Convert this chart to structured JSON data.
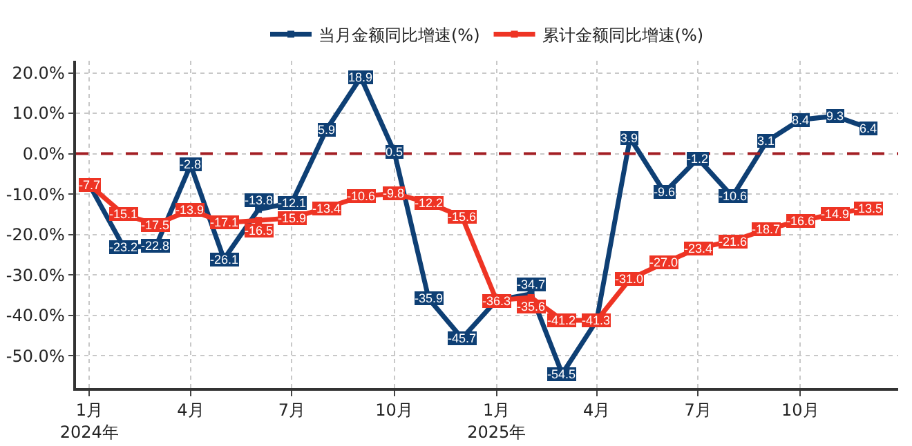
{
  "chart_data": {
    "type": "line",
    "x": [
      "2024-01",
      "2024-02",
      "2024-03",
      "2024-04",
      "2024-05",
      "2024-06",
      "2024-07",
      "2024-08",
      "2024-09",
      "2024-10",
      "2024-11",
      "2024-12",
      "2025-01",
      "2025-02",
      "2025-03",
      "2025-04",
      "2025-05",
      "2025-06",
      "2025-07",
      "2025-08",
      "2025-09",
      "2025-10",
      "2025-11",
      "2025-12"
    ],
    "series": [
      {
        "name": "当月金额同比增速(%)",
        "color": "#0e3f74",
        "values": [
          -7.7,
          -23.2,
          -22.8,
          -2.8,
          -26.1,
          -13.8,
          -12.1,
          5.9,
          18.9,
          0.5,
          -35.9,
          -45.7,
          -36.3,
          -34.7,
          -54.5,
          -41.3,
          3.9,
          -9.6,
          -1.2,
          -10.6,
          3.1,
          8.4,
          9.3,
          6.4
        ],
        "value_labels": [
          null,
          "-23.2",
          "-22.8",
          "-2.8",
          "-26.1",
          "-13.8",
          "-12.1",
          "5.9",
          "18.9",
          "0.5",
          "-35.9",
          "-45.7",
          null,
          "-34.7",
          "-54.5",
          null,
          "3.9",
          "-9.6",
          "-1.2",
          "-10.6",
          "3.1",
          "8.4",
          "9.3",
          "6.4"
        ]
      },
      {
        "name": "累计金额同比增速(%)",
        "color": "#ee3424",
        "values": [
          -7.7,
          -15.1,
          -17.5,
          -13.9,
          -17.1,
          -16.5,
          -15.9,
          -13.4,
          -10.6,
          -9.8,
          -12.2,
          -15.6,
          -36.3,
          -35.6,
          -41.2,
          -41.3,
          -31.0,
          -27.0,
          -23.4,
          -21.6,
          -18.7,
          -16.6,
          -14.9,
          -13.5
        ],
        "value_labels": [
          "-7.7",
          "-15.1",
          "-17.5",
          "-13.9",
          "-17.1",
          "-16.5",
          "-15.9",
          "-13.4",
          "-10.6",
          "-9.8",
          "-12.2",
          "-15.6",
          "-36.3",
          "-35.6",
          "-41.2",
          "-41.3",
          "-31.0",
          "-27.0",
          "-23.4",
          "-21.6",
          "-18.7",
          "-16.6",
          "-14.9",
          "-13.5"
        ]
      }
    ],
    "xlim": [
      "2023-12-20",
      "2025-12-28"
    ],
    "xticks": [
      {
        "value": "2024-01",
        "label": "1月\n2024年"
      },
      {
        "value": "2024-04",
        "label": "4月"
      },
      {
        "value": "2024-07",
        "label": "7月"
      },
      {
        "value": "2024-10",
        "label": "10月"
      },
      {
        "value": "2025-01",
        "label": "1月\n2025年"
      },
      {
        "value": "2025-04",
        "label": "4月"
      },
      {
        "value": "2025-07",
        "label": "7月"
      },
      {
        "value": "2025-10",
        "label": "10月"
      }
    ],
    "ylim": [
      -58,
      23
    ],
    "yticks": [
      {
        "value": -50,
        "label": "-50.0%"
      },
      {
        "value": -40,
        "label": "-40.0%"
      },
      {
        "value": -30,
        "label": "-30.0%"
      },
      {
        "value": -20,
        "label": "-20.0%"
      },
      {
        "value": -10,
        "label": "-10.0%"
      },
      {
        "value": 0,
        "label": "0.0%"
      },
      {
        "value": 10,
        "label": "10.0%"
      },
      {
        "value": 20,
        "label": "20.0%"
      }
    ],
    "ref_lines": [
      {
        "axis": "y",
        "value": 0,
        "color": "#a31f24",
        "line_style": "dashed"
      }
    ],
    "grid": true,
    "legend": "top",
    "marker": "square",
    "line_style": "solid"
  }
}
